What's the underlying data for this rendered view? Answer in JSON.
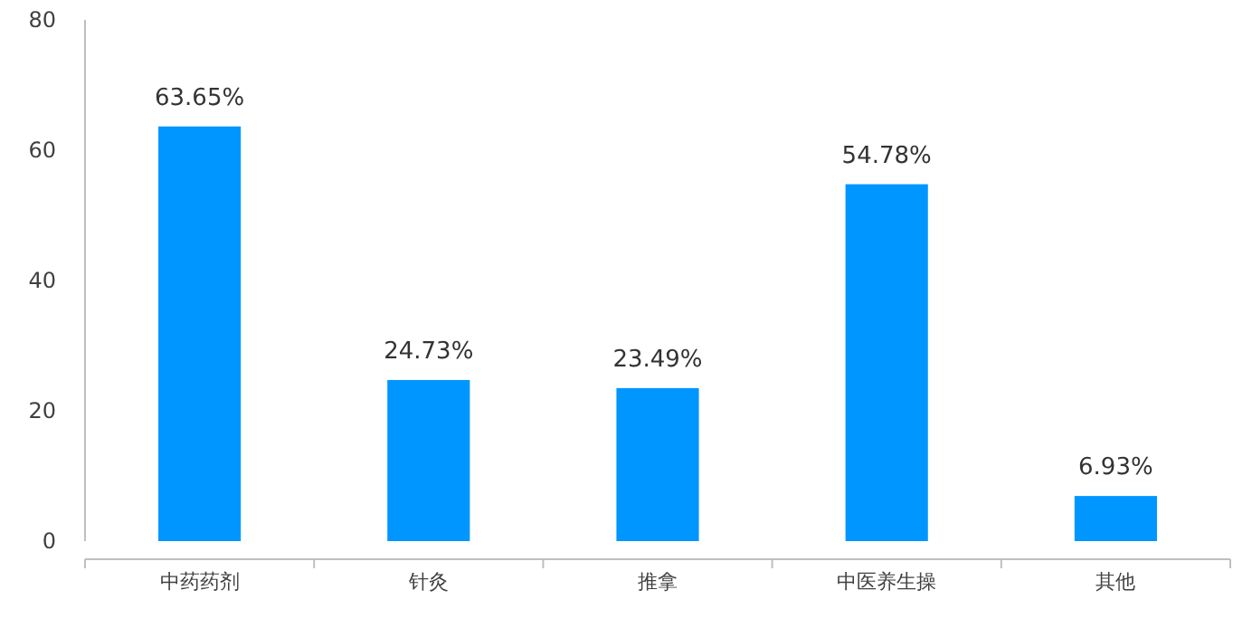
{
  "chart_data": {
    "type": "bar",
    "categories": [
      "中药药剂",
      "针灸",
      "推拿",
      "中医养生操",
      "其他"
    ],
    "values": [
      63.65,
      24.73,
      23.49,
      54.78,
      6.93
    ],
    "value_labels": [
      "63.65%",
      "24.73%",
      "23.49%",
      "54.78%",
      "6.93%"
    ],
    "color": "#0096ff",
    "ylim": [
      0,
      80
    ],
    "yticks": [
      0,
      20,
      40,
      60,
      80
    ],
    "grid": false
  }
}
